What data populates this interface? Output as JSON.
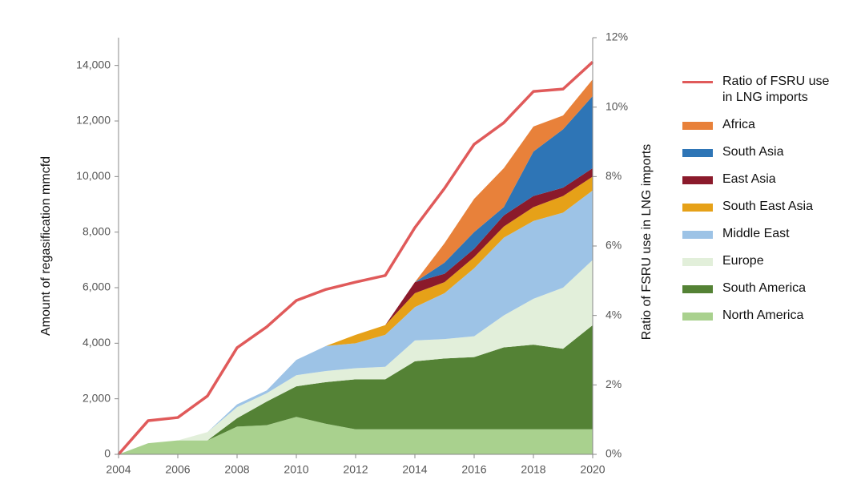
{
  "chart_data": {
    "type": "area",
    "x": [
      2004,
      2005,
      2006,
      2007,
      2008,
      2009,
      2010,
      2011,
      2012,
      2013,
      2014,
      2015,
      2016,
      2017,
      2018,
      2019,
      2020
    ],
    "y_label": "Amount of regasification   mmcfd",
    "y2_label": "Ratio of FSRU use in LNG imports",
    "xlim": [
      2004,
      2020
    ],
    "xticks": [
      2004,
      2006,
      2008,
      2010,
      2012,
      2014,
      2016,
      2018,
      2020
    ],
    "ylim": [
      0,
      15000
    ],
    "yticks": [
      0,
      {
        "value": 2000,
        "label": "2,000"
      },
      {
        "value": 4000,
        "label": "4,000"
      },
      {
        "value": 6000,
        "label": "6,000"
      },
      {
        "value": 8000,
        "label": "8,000"
      },
      {
        "value": 10000,
        "label": "10,000"
      },
      {
        "value": 12000,
        "label": "12,000"
      },
      {
        "value": 14000,
        "label": "14,000"
      }
    ],
    "y2lim": [
      0,
      12
    ],
    "y2ticks": [
      {
        "value": 0,
        "label": "0%"
      },
      {
        "value": 2,
        "label": "2%"
      },
      {
        "value": 4,
        "label": "4%"
      },
      {
        "value": 6,
        "label": "6%"
      },
      {
        "value": 8,
        "label": "8%"
      },
      {
        "value": 10,
        "label": "10%"
      },
      {
        "value": 12,
        "label": "12%"
      }
    ],
    "stacked": true,
    "grid": false,
    "legend": "right",
    "series": [
      {
        "name": "North America",
        "color": "#a9d18e",
        "values": [
          0,
          400,
          500,
          500,
          1000,
          1050,
          1350,
          1100,
          900,
          900,
          900,
          900,
          900,
          900,
          900,
          900,
          900
        ]
      },
      {
        "name": "South America",
        "color": "#548235",
        "values": [
          0,
          0,
          0,
          0,
          300,
          850,
          1100,
          1500,
          1800,
          1800,
          2450,
          2550,
          2600,
          2950,
          3050,
          2900,
          3750
        ]
      },
      {
        "name": "Europe",
        "color": "#e2efda",
        "values": [
          0,
          0,
          0,
          300,
          400,
          300,
          400,
          400,
          400,
          450,
          750,
          700,
          750,
          1150,
          1650,
          2200,
          2350
        ]
      },
      {
        "name": "Middle East",
        "color": "#9dc3e6",
        "values": [
          0,
          0,
          0,
          0,
          100,
          100,
          550,
          900,
          900,
          1150,
          1200,
          1650,
          2450,
          2800,
          2800,
          2700,
          2500
        ]
      },
      {
        "name": "South East Asia",
        "color": "#e6a118",
        "values": [
          0,
          0,
          0,
          0,
          0,
          0,
          0,
          0,
          300,
          350,
          500,
          400,
          400,
          400,
          500,
          600,
          500
        ]
      },
      {
        "name": "East Asia",
        "color": "#8b1a2b",
        "values": [
          0,
          0,
          0,
          0,
          0,
          0,
          0,
          0,
          0,
          0,
          400,
          300,
          300,
          400,
          400,
          300,
          300
        ]
      },
      {
        "name": "South Asia",
        "color": "#2e75b6",
        "values": [
          0,
          0,
          0,
          0,
          0,
          0,
          0,
          0,
          0,
          0,
          0,
          400,
          600,
          300,
          1600,
          2100,
          2600
        ]
      },
      {
        "name": "Africa",
        "color": "#e8813a",
        "values": [
          0,
          0,
          0,
          0,
          0,
          0,
          0,
          0,
          0,
          0,
          0,
          700,
          1200,
          1400,
          900,
          500,
          600
        ]
      },
      {
        "name": "Ratio of FSRU use in LNG imports",
        "color": "#e05a5a",
        "type": "line",
        "axis": "y2",
        "values": [
          0,
          0.97,
          1.06,
          1.68,
          3.07,
          3.67,
          4.43,
          4.75,
          4.96,
          5.15,
          6.53,
          7.66,
          8.93,
          9.55,
          10.45,
          10.52,
          11.3
        ]
      }
    ]
  }
}
